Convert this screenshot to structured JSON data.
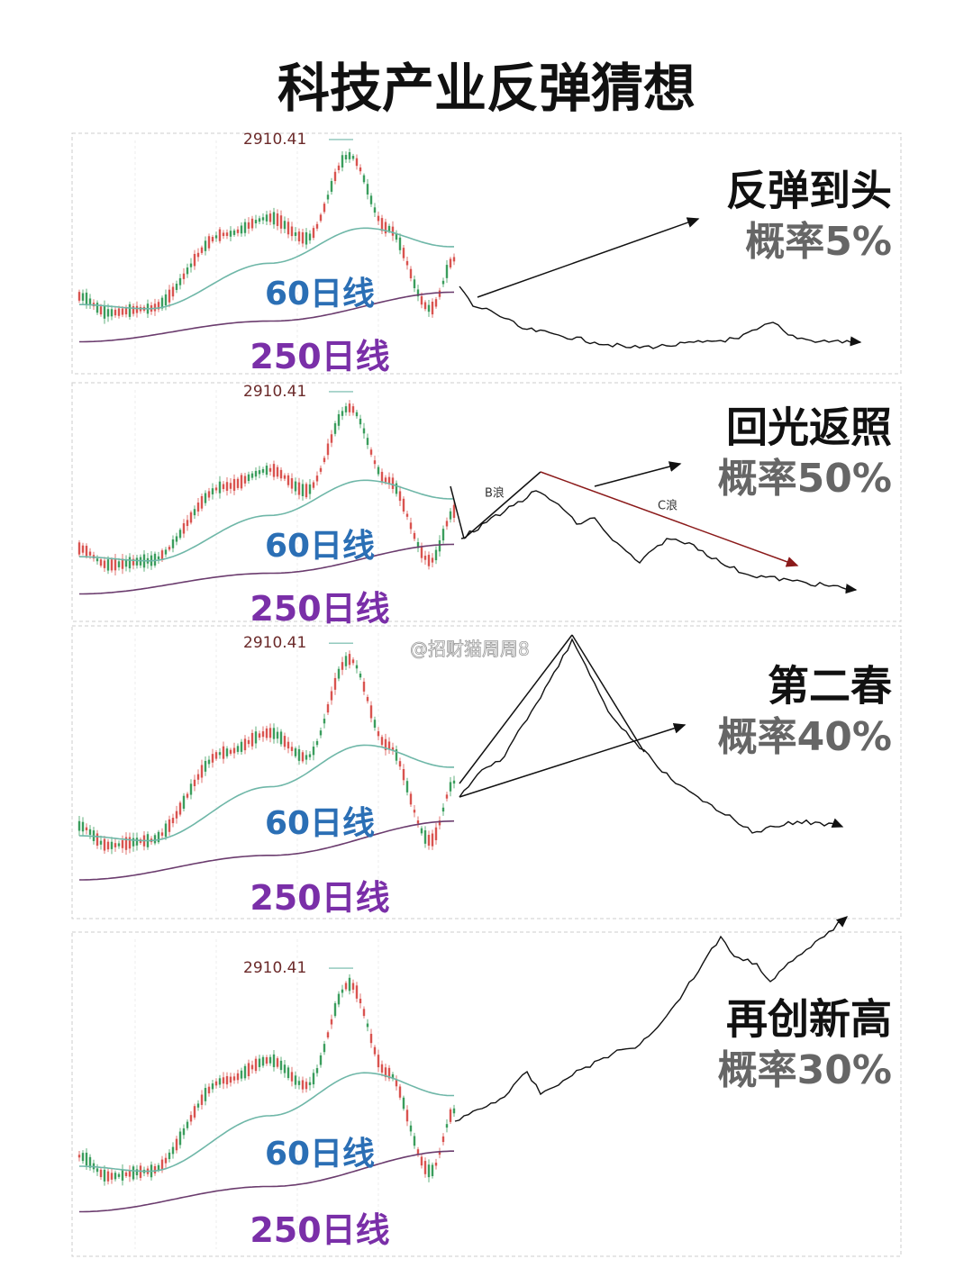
{
  "title": "科技产业反弹猜想",
  "panels": [
    {
      "peak_label": "2910.41",
      "ma60_label": "60日线",
      "ma250_label": "250日线",
      "scenario": "反弹到头",
      "probability": "概率5%"
    },
    {
      "peak_label": "2910.41",
      "ma60_label": "60日线",
      "ma250_label": "250日线",
      "scenario": "回光返照",
      "probability": "概率50%",
      "wave_labels": [
        "B浪",
        "C浪"
      ]
    },
    {
      "peak_label": "2910.41",
      "ma60_label": "60日线",
      "ma250_label": "250日线",
      "scenario": "第二春",
      "probability": "概率40%"
    },
    {
      "peak_label": "2910.41",
      "ma60_label": "60日线",
      "ma250_label": "250日线",
      "scenario": "再创新高",
      "probability": "概率30%"
    }
  ],
  "watermark": "@招财猫周周8"
}
